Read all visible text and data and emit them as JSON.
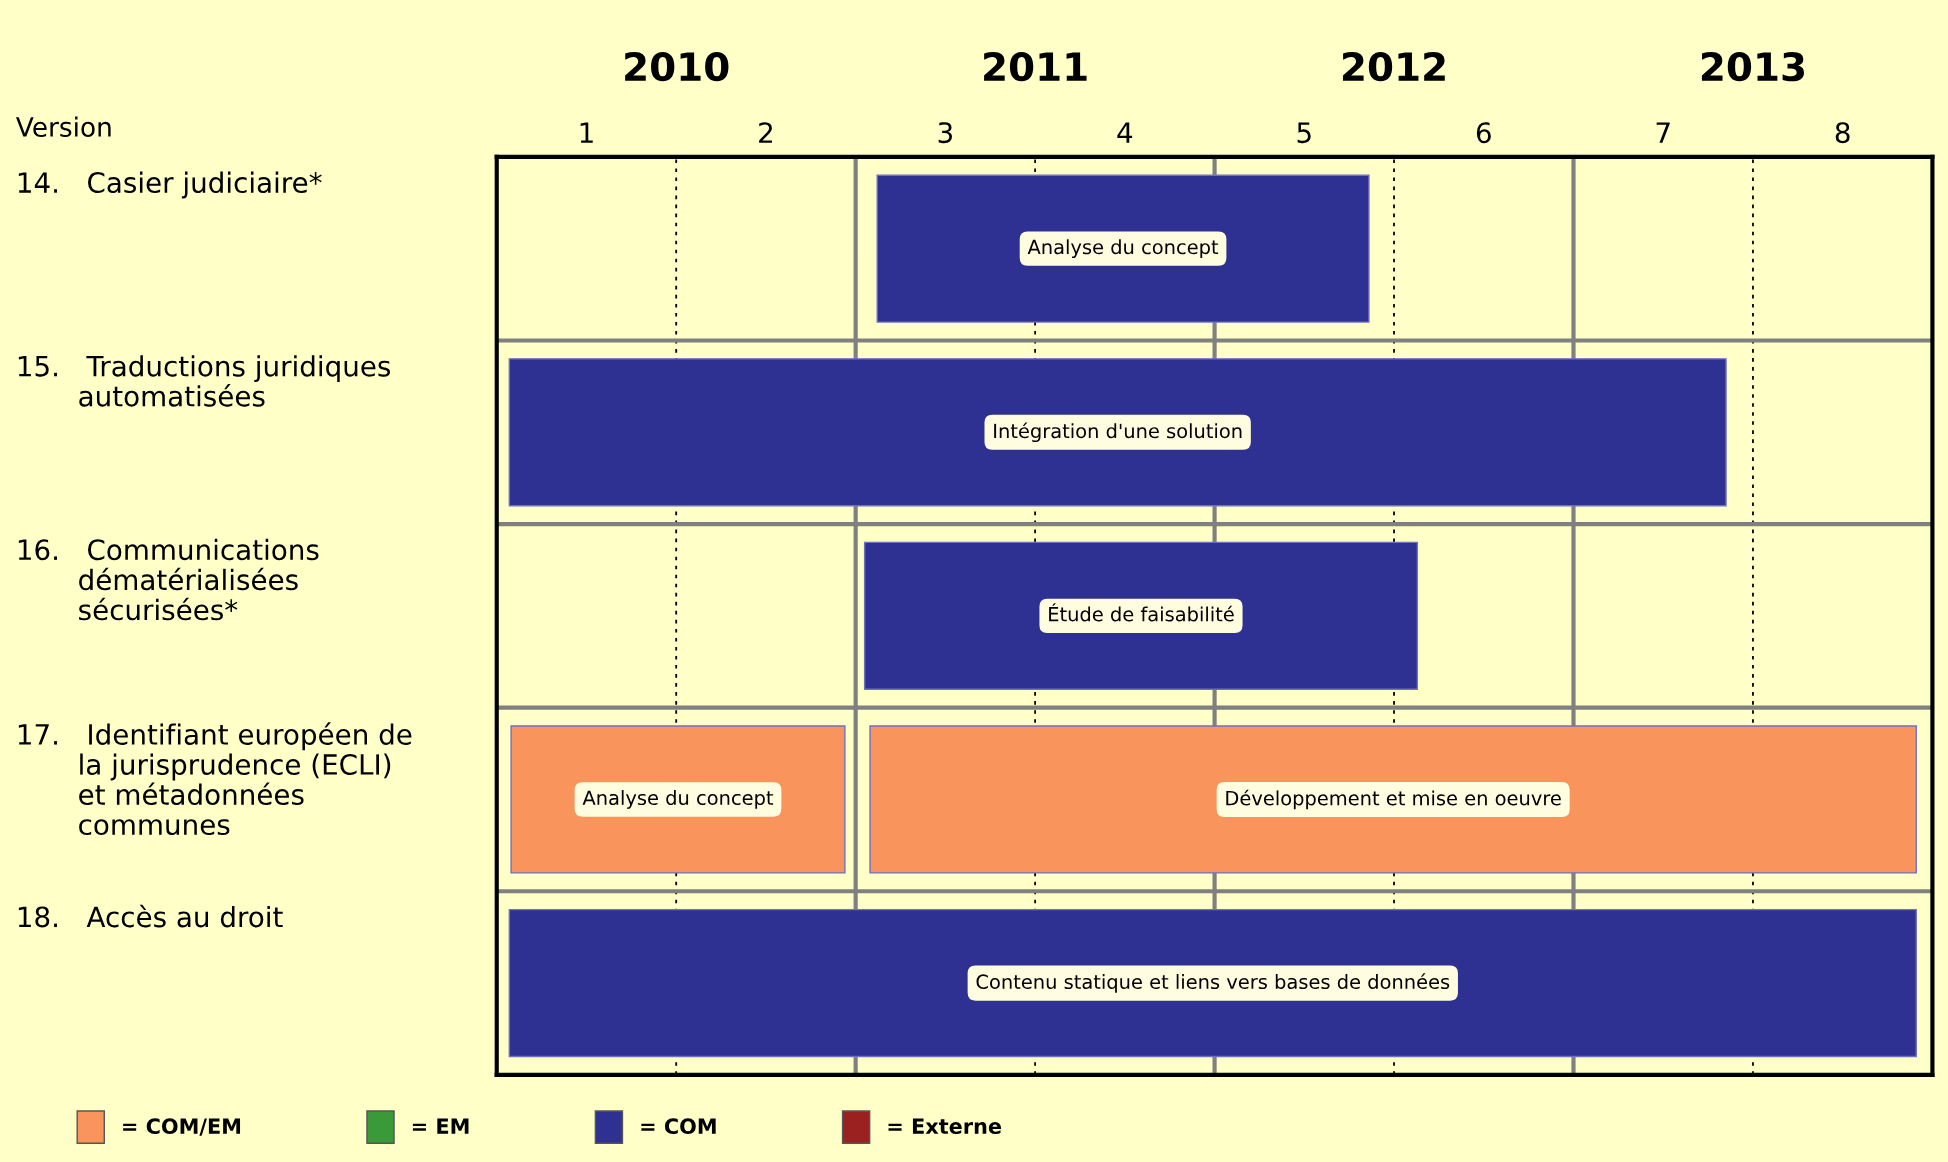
{
  "chart_data": {
    "type": "bar",
    "orientation": "horizontal",
    "xlabel": "Version",
    "categories": [
      "14.   Casier judiciaire*",
      "15.   Traductions juridiques\n       automatisées",
      "16.   Communications\n       dématérialisées\n       sécurisées*",
      "17.   Identifiant européen de\n       la jurisprudence (ECLI)\n       et métadonnées\n       communes",
      "18.   Accès au droit"
    ],
    "series": [
      {
        "name": "= COM/EM",
        "color": "#f9955c",
        "base": [
          null,
          null,
          null,
          0.08,
          null
        ],
        "values": [
          null,
          null,
          null,
          1.86,
          null
        ],
        "value_labels": [
          null,
          null,
          null,
          "Analyse du concept",
          null
        ]
      },
      {
        "color": "#f9955c",
        "base": [
          null,
          null,
          null,
          2.08,
          null
        ],
        "values": [
          null,
          null,
          null,
          5.83,
          null
        ],
        "value_labels": [
          null,
          null,
          null,
          "Développement et mise en oeuvre",
          null
        ]
      },
      {
        "name": "= EM",
        "color": "#3a9a3a",
        "values": [
          null,
          null,
          null,
          null,
          null
        ]
      },
      {
        "name": "= COM",
        "color": "#2e3192",
        "base": [
          2.12,
          0.07,
          2.05,
          null,
          0.07
        ],
        "values": [
          2.74,
          6.78,
          3.08,
          null,
          7.84
        ],
        "value_labels": [
          "Analyse du concept",
          "Intégration d'une solution",
          "Étude de faisabilité",
          null,
          "Contenu statique et liens vers bases de données"
        ]
      },
      {
        "name": "= Externe",
        "color": "#9b2020",
        "values": [
          null,
          null,
          null,
          null,
          null
        ]
      }
    ],
    "xlim": [
      0,
      8
    ],
    "xticks": [
      {
        "value": 0.5,
        "label": "1"
      },
      {
        "value": 1,
        "label": null
      },
      {
        "value": 1.5,
        "label": "2"
      },
      {
        "value": 2.5,
        "label": "3"
      },
      {
        "value": 3,
        "label": null
      },
      {
        "value": 3.5,
        "label": "4"
      },
      {
        "value": 4.5,
        "label": "5"
      },
      {
        "value": 5,
        "label": null
      },
      {
        "value": 5.5,
        "label": "6"
      },
      {
        "value": 6.5,
        "label": "7"
      },
      {
        "value": 7,
        "label": null
      },
      {
        "value": 7.5,
        "label": "8"
      }
    ],
    "x2lim": [
      2009.5,
      2013.5
    ],
    "x2ticks": [
      2010,
      {
        "value": 2010.5,
        "label": null
      },
      2011,
      {
        "value": 2011.5,
        "label": null
      },
      2012,
      {
        "value": 2012.5,
        "label": null
      },
      2013
    ],
    "grid": "x",
    "legend": "bottom left"
  }
}
